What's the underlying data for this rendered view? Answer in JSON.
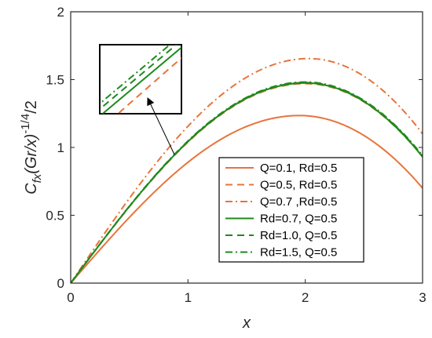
{
  "chart_data": {
    "type": "line",
    "xlabel": "x",
    "ylabel": {
      "base": "C",
      "sub": "fx",
      "mid": "(Gr/x)",
      "sup": "-1/4",
      "tail": "/2"
    },
    "xlim": [
      0,
      3
    ],
    "ylim": [
      0,
      2
    ],
    "xticks": [
      0,
      1,
      2,
      3
    ],
    "yticks": [
      0,
      0.5,
      1,
      1.5,
      2
    ],
    "xtick_labels": [
      "0",
      "1",
      "2",
      "3"
    ],
    "ytick_labels": [
      "0",
      "0.5",
      "1",
      "1.5",
      "2"
    ],
    "grid": false,
    "legend_position": "lower-right",
    "colors": {
      "orange": "#E8743B",
      "green": "#1E8A1E",
      "axis": "#262626"
    },
    "series": [
      {
        "name": "Q=0.1, Rd=0.5",
        "peak_x": 1.95,
        "peak_y": 1.235,
        "end_y": 0.7,
        "color": "#E8743B",
        "dash": "solid"
      },
      {
        "name": "Q=0.5, Rd=0.5",
        "peak_x": 2.0,
        "peak_y": 1.47,
        "end_y": 0.93,
        "color": "#E8743B",
        "dash": "dashed"
      },
      {
        "name": "Q=0.7 ,Rd=0.5",
        "peak_x": 2.03,
        "peak_y": 1.655,
        "end_y": 1.1,
        "color": "#E8743B",
        "dash": "dashdot"
      },
      {
        "name": "Rd=0.7, Q=0.5",
        "peak_x": 2.0,
        "peak_y": 1.475,
        "end_y": 0.93,
        "color": "#1E8A1E",
        "dash": "solid"
      },
      {
        "name": "Rd=1.0, Q=0.5",
        "peak_x": 2.0,
        "peak_y": 1.478,
        "end_y": 0.935,
        "color": "#1E8A1E",
        "dash": "dashed"
      },
      {
        "name": "Rd=1.5, Q=0.5",
        "peak_x": 2.0,
        "peak_y": 1.482,
        "end_y": 0.94,
        "color": "#1E8A1E",
        "dash": "dashdot"
      }
    ],
    "inset": {
      "note": "zoomed view of the green curves and Q=0.5 curve"
    }
  }
}
